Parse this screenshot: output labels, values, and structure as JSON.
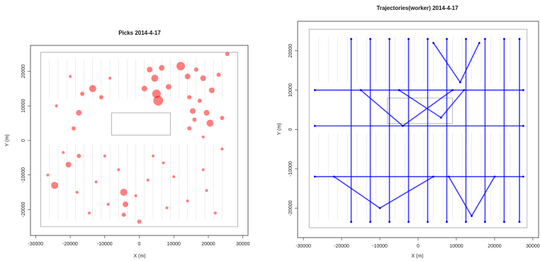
{
  "chart_data": [
    {
      "type": "scatter",
      "title": "Picks 2014-4-17",
      "xlabel": "X (m)",
      "ylabel": "Y (m)",
      "xlim": [
        -31500,
        31500
      ],
      "ylim": [
        -27500,
        27500
      ],
      "xticks": [
        "-30000",
        "-20000",
        "-10000",
        "0",
        "10000",
        "20000",
        "30000"
      ],
      "yticks": [
        "-20000",
        "-10000",
        "0",
        "10000",
        "20000"
      ],
      "marker_color": "#ff0000",
      "series": [
        {
          "points": [
            {
              "x": 12000,
              "y": 21500,
              "size": 6
            },
            {
              "x": 3000,
              "y": 20500,
              "size": 4
            },
            {
              "x": 6500,
              "y": 21000,
              "size": 4
            },
            {
              "x": 4500,
              "y": 18000,
              "size": 5
            },
            {
              "x": 1500,
              "y": 15000,
              "size": 4
            },
            {
              "x": 5000,
              "y": 13500,
              "size": 6
            },
            {
              "x": 5500,
              "y": 11500,
              "size": 7
            },
            {
              "x": 8500,
              "y": 15500,
              "size": 4
            },
            {
              "x": 14000,
              "y": 18500,
              "size": 4
            },
            {
              "x": 16500,
              "y": 20500,
              "size": 3
            },
            {
              "x": 18500,
              "y": 18000,
              "size": 4
            },
            {
              "x": 21000,
              "y": 14500,
              "size": 4
            },
            {
              "x": 23000,
              "y": 19000,
              "size": 3
            },
            {
              "x": 25500,
              "y": 25000,
              "size": 3
            },
            {
              "x": 14500,
              "y": 12500,
              "size": 3
            },
            {
              "x": 17500,
              "y": 11500,
              "size": 3
            },
            {
              "x": 15500,
              "y": 8500,
              "size": 4
            },
            {
              "x": 19500,
              "y": 8000,
              "size": 4
            },
            {
              "x": 20500,
              "y": 5000,
              "size": 5
            },
            {
              "x": 16000,
              "y": 6000,
              "size": 3
            },
            {
              "x": 24000,
              "y": 6500,
              "size": 3
            },
            {
              "x": 14500,
              "y": 3500,
              "size": 3
            },
            {
              "x": 18500,
              "y": 1000,
              "size": 2
            },
            {
              "x": -13500,
              "y": 15000,
              "size": 5
            },
            {
              "x": -16500,
              "y": 13500,
              "size": 3
            },
            {
              "x": -11000,
              "y": 12500,
              "size": 3
            },
            {
              "x": -17500,
              "y": 8000,
              "size": 4
            },
            {
              "x": -19000,
              "y": 3500,
              "size": 3
            },
            {
              "x": -24000,
              "y": 10000,
              "size": 2
            },
            {
              "x": -20000,
              "y": 18500,
              "size": 2
            },
            {
              "x": -8500,
              "y": 18000,
              "size": 2
            },
            {
              "x": -22000,
              "y": -3500,
              "size": 2
            },
            {
              "x": -20500,
              "y": -7000,
              "size": 4
            },
            {
              "x": -17500,
              "y": -4500,
              "size": 3
            },
            {
              "x": -26500,
              "y": -10000,
              "size": 2
            },
            {
              "x": -24500,
              "y": -13000,
              "size": 5
            },
            {
              "x": -18000,
              "y": -15000,
              "size": 2
            },
            {
              "x": -12500,
              "y": -12000,
              "size": 2
            },
            {
              "x": -10000,
              "y": -4500,
              "size": 2
            },
            {
              "x": -6000,
              "y": -8500,
              "size": 2
            },
            {
              "x": -4500,
              "y": -15000,
              "size": 5
            },
            {
              "x": -4000,
              "y": -18500,
              "size": 4
            },
            {
              "x": -4500,
              "y": -21500,
              "size": 3
            },
            {
              "x": -1000,
              "y": -16000,
              "size": 2
            },
            {
              "x": -9000,
              "y": -18500,
              "size": 2
            },
            {
              "x": 0,
              "y": -23500,
              "size": 3
            },
            {
              "x": 4000,
              "y": -4500,
              "size": 2
            },
            {
              "x": 7000,
              "y": -6500,
              "size": 2
            },
            {
              "x": 10000,
              "y": -10500,
              "size": 2
            },
            {
              "x": 14000,
              "y": -17500,
              "size": 2
            },
            {
              "x": 18500,
              "y": -8500,
              "size": 2
            },
            {
              "x": 19500,
              "y": -14500,
              "size": 2
            },
            {
              "x": 22000,
              "y": -21000,
              "size": 2
            },
            {
              "x": 24000,
              "y": -2500,
              "size": 2
            },
            {
              "x": 8000,
              "y": -19500,
              "size": 2
            },
            {
              "x": 2500,
              "y": -11500,
              "size": 2
            },
            {
              "x": -14500,
              "y": -21000,
              "size": 2
            }
          ]
        }
      ]
    },
    {
      "type": "line",
      "title": "Trajectories(worker) 2014-4-17",
      "xlabel": "X (m)",
      "ylabel": "Y (m)",
      "xlim": [
        -31500,
        31500
      ],
      "ylim": [
        -27500,
        27500
      ],
      "xticks": [
        "-30000",
        "-20000",
        "-10000",
        "0",
        "10000",
        "20000",
        "30000"
      ],
      "yticks": [
        "-20000",
        "-10000",
        "0",
        "10000",
        "20000"
      ],
      "line_color": "#0000ff",
      "series": [
        {
          "points": [
            {
              "x": -27000,
              "y": 10000
            },
            {
              "x": 27500,
              "y": 10000
            }
          ]
        },
        {
          "points": [
            {
              "x": -27000,
              "y": 900
            },
            {
              "x": 27500,
              "y": 900
            }
          ]
        },
        {
          "points": [
            {
              "x": -27000,
              "y": -12000
            },
            {
              "x": 27500,
              "y": -12000
            }
          ]
        },
        {
          "points": [
            {
              "x": -17500,
              "y": 23000
            },
            {
              "x": -17500,
              "y": -23500
            }
          ]
        },
        {
          "points": [
            {
              "x": -12500,
              "y": 23000
            },
            {
              "x": -12500,
              "y": -23500
            }
          ]
        },
        {
          "points": [
            {
              "x": -7500,
              "y": 23000
            },
            {
              "x": -7500,
              "y": -23500
            }
          ]
        },
        {
          "points": [
            {
              "x": -2500,
              "y": 23000
            },
            {
              "x": -2500,
              "y": -23500
            }
          ]
        },
        {
          "points": [
            {
              "x": 2500,
              "y": 23000
            },
            {
              "x": 2500,
              "y": -23500
            }
          ]
        },
        {
          "points": [
            {
              "x": 7500,
              "y": 23000
            },
            {
              "x": 7500,
              "y": -23500
            }
          ]
        },
        {
          "points": [
            {
              "x": 12500,
              "y": 23000
            },
            {
              "x": 12500,
              "y": -23500
            }
          ]
        },
        {
          "points": [
            {
              "x": 17500,
              "y": 23000
            },
            {
              "x": 17500,
              "y": -23500
            }
          ]
        },
        {
          "points": [
            {
              "x": 22500,
              "y": 23000
            },
            {
              "x": 22500,
              "y": -23500
            }
          ]
        },
        {
          "points": [
            {
              "x": 26500,
              "y": 23000
            },
            {
              "x": 26500,
              "y": -23500
            }
          ]
        },
        {
          "points": [
            {
              "x": -5000,
              "y": 10000
            },
            {
              "x": 6000,
              "y": 3000
            },
            {
              "x": 12000,
              "y": 10000
            }
          ]
        },
        {
          "points": [
            {
              "x": 4000,
              "y": 22000
            },
            {
              "x": 11000,
              "y": 12000
            },
            {
              "x": 16000,
              "y": 22000
            }
          ]
        },
        {
          "points": [
            {
              "x": -15000,
              "y": 10000
            },
            {
              "x": -4000,
              "y": 900
            },
            {
              "x": 9000,
              "y": 10000
            }
          ]
        },
        {
          "points": [
            {
              "x": -22000,
              "y": -12000
            },
            {
              "x": -10000,
              "y": -20000
            },
            {
              "x": 4000,
              "y": -12000
            }
          ]
        },
        {
          "points": [
            {
              "x": 8000,
              "y": -12000
            },
            {
              "x": 14000,
              "y": -22000
            },
            {
              "x": 20000,
              "y": -12000
            }
          ]
        }
      ]
    }
  ]
}
